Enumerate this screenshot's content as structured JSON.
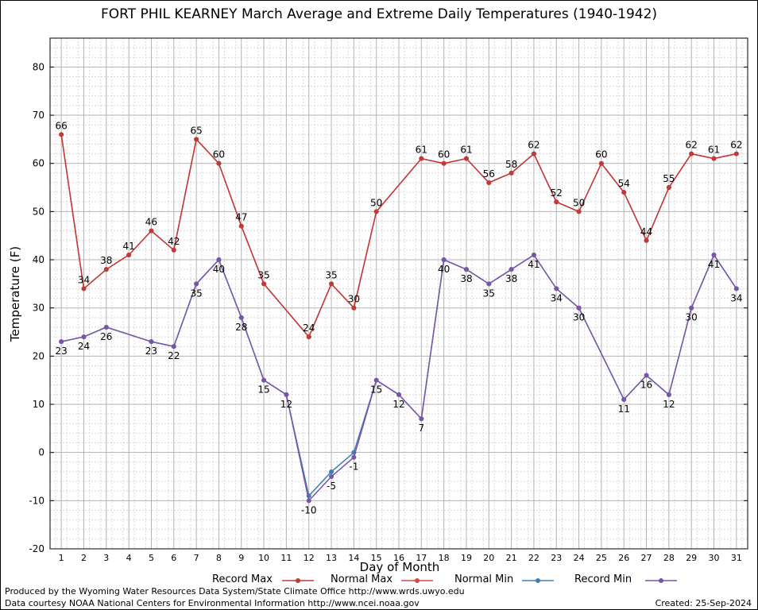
{
  "title": "FORT PHIL KEARNEY March Average and Extreme Daily Temperatures (1940-1942)",
  "footer": {
    "credits1": "Produced by the Wyoming Water Resources Data System/State Climate Office http://www.wrds.uwyo.edu",
    "credits2": "Data courtesy NOAA National Centers for Environmental Information http://www.ncei.noaa.gov",
    "created": "Created:  25-Sep-2024"
  },
  "colors": {
    "record_max": "#c03a3a",
    "normal_max": "#d04848",
    "normal_min": "#3f7fb0",
    "record_min": "#7a54a8",
    "grid_major": "#b4b4b4",
    "grid_minor": "#d9d9d9"
  },
  "chart_data": {
    "type": "line",
    "title": "FORT PHIL KEARNEY March Average and Extreme Daily Temperatures (1940-1942)",
    "xlabel": "Day of Month",
    "ylabel": "Temperature (F)",
    "xlim": [
      0.5,
      31.5
    ],
    "ylim": [
      -20,
      86
    ],
    "yticks": [
      -20,
      -10,
      0,
      10,
      20,
      30,
      40,
      50,
      60,
      70,
      80
    ],
    "x": [
      1,
      2,
      3,
      4,
      5,
      6,
      7,
      8,
      9,
      10,
      11,
      12,
      13,
      14,
      15,
      16,
      17,
      18,
      19,
      20,
      21,
      22,
      23,
      24,
      25,
      26,
      27,
      28,
      29,
      30,
      31
    ],
    "grid": true,
    "legend_position": "bottom",
    "series": [
      {
        "name": "Record Max",
        "points": [
          [
            1,
            66
          ],
          [
            2,
            34
          ],
          [
            3,
            38
          ],
          [
            4,
            41
          ],
          [
            5,
            46
          ],
          [
            6,
            42
          ],
          [
            7,
            65
          ],
          [
            8,
            60
          ],
          [
            9,
            47
          ],
          [
            10,
            35
          ],
          [
            12,
            24
          ],
          [
            13,
            35
          ],
          [
            14,
            30
          ],
          [
            15,
            50
          ],
          [
            17,
            61
          ],
          [
            18,
            60
          ],
          [
            19,
            61
          ],
          [
            20,
            56
          ],
          [
            21,
            58
          ],
          [
            22,
            62
          ],
          [
            23,
            52
          ],
          [
            24,
            50
          ],
          [
            25,
            60
          ],
          [
            26,
            54
          ],
          [
            27,
            44
          ],
          [
            28,
            55
          ],
          [
            29,
            62
          ],
          [
            30,
            61
          ],
          [
            31,
            62
          ]
        ],
        "labels": [
          66,
          34,
          38,
          41,
          46,
          42,
          65,
          60,
          47,
          35,
          24,
          35,
          30,
          50,
          61,
          60,
          61,
          56,
          58,
          62,
          52,
          50,
          60,
          54,
          44,
          55,
          62,
          61,
          62
        ]
      },
      {
        "name": "Normal Max",
        "points": [
          [
            1,
            66
          ],
          [
            2,
            34
          ],
          [
            3,
            38
          ],
          [
            4,
            41
          ],
          [
            5,
            46
          ],
          [
            6,
            42
          ],
          [
            7,
            65
          ],
          [
            8,
            60
          ],
          [
            9,
            47
          ],
          [
            10,
            35
          ],
          [
            12,
            24
          ],
          [
            13,
            35
          ],
          [
            14,
            30
          ],
          [
            15,
            50
          ],
          [
            17,
            61
          ],
          [
            18,
            60
          ],
          [
            19,
            61
          ],
          [
            20,
            56
          ],
          [
            21,
            58
          ],
          [
            22,
            62
          ],
          [
            23,
            52
          ],
          [
            24,
            50
          ],
          [
            25,
            60
          ],
          [
            26,
            54
          ],
          [
            27,
            44
          ],
          [
            28,
            55
          ],
          [
            29,
            62
          ],
          [
            30,
            61
          ],
          [
            31,
            62
          ]
        ]
      },
      {
        "name": "Normal Min",
        "points": [
          [
            1,
            23
          ],
          [
            2,
            24
          ],
          [
            3,
            26
          ],
          [
            5,
            23
          ],
          [
            6,
            22
          ],
          [
            7,
            35
          ],
          [
            8,
            40
          ],
          [
            9,
            28
          ],
          [
            10,
            15
          ],
          [
            11,
            12
          ],
          [
            12,
            -9
          ],
          [
            13,
            -4
          ],
          [
            14,
            0
          ],
          [
            15,
            15
          ],
          [
            16,
            12
          ],
          [
            17,
            7
          ],
          [
            18,
            40
          ],
          [
            19,
            38
          ],
          [
            20,
            35
          ],
          [
            21,
            38
          ],
          [
            22,
            41
          ],
          [
            23,
            34
          ],
          [
            24,
            30
          ],
          [
            26,
            11
          ],
          [
            27,
            16
          ],
          [
            28,
            12
          ],
          [
            29,
            30
          ],
          [
            30,
            41
          ],
          [
            31,
            34
          ]
        ]
      },
      {
        "name": "Record Min",
        "points": [
          [
            1,
            23
          ],
          [
            2,
            24
          ],
          [
            3,
            26
          ],
          [
            5,
            23
          ],
          [
            6,
            22
          ],
          [
            7,
            35
          ],
          [
            8,
            40
          ],
          [
            9,
            28
          ],
          [
            10,
            15
          ],
          [
            11,
            12
          ],
          [
            12,
            -10
          ],
          [
            13,
            -5
          ],
          [
            14,
            -1
          ],
          [
            15,
            15
          ],
          [
            16,
            12
          ],
          [
            17,
            7
          ],
          [
            18,
            40
          ],
          [
            19,
            38
          ],
          [
            20,
            35
          ],
          [
            21,
            38
          ],
          [
            22,
            41
          ],
          [
            23,
            34
          ],
          [
            24,
            30
          ],
          [
            26,
            11
          ],
          [
            27,
            16
          ],
          [
            28,
            12
          ],
          [
            29,
            30
          ],
          [
            30,
            41
          ],
          [
            31,
            34
          ]
        ],
        "labels": [
          23,
          24,
          26,
          23,
          22,
          35,
          40,
          28,
          15,
          12,
          -10,
          -5,
          -1,
          15,
          12,
          7,
          40,
          38,
          35,
          38,
          41,
          34,
          30,
          11,
          16,
          12,
          30,
          41,
          34
        ]
      }
    ]
  }
}
